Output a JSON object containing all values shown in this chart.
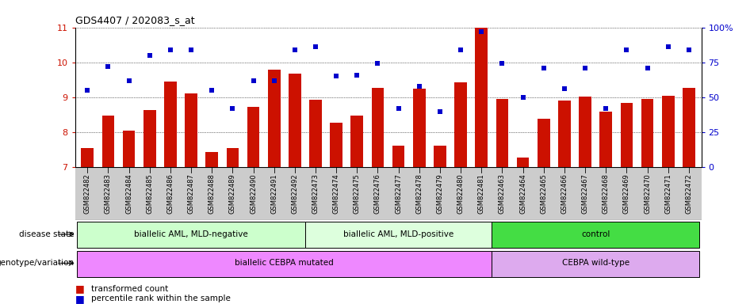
{
  "title": "GDS4407 / 202083_s_at",
  "samples": [
    "GSM822482",
    "GSM822483",
    "GSM822484",
    "GSM822485",
    "GSM822486",
    "GSM822487",
    "GSM822488",
    "GSM822489",
    "GSM822490",
    "GSM822491",
    "GSM822492",
    "GSM822473",
    "GSM822474",
    "GSM822475",
    "GSM822476",
    "GSM822477",
    "GSM822478",
    "GSM822479",
    "GSM822480",
    "GSM822481",
    "GSM822463",
    "GSM822464",
    "GSM822465",
    "GSM822466",
    "GSM822467",
    "GSM822468",
    "GSM822469",
    "GSM822470",
    "GSM822471",
    "GSM822472"
  ],
  "bar_values": [
    7.55,
    8.47,
    8.05,
    8.63,
    9.45,
    9.12,
    7.44,
    7.55,
    8.72,
    9.78,
    9.68,
    8.92,
    8.27,
    8.48,
    9.27,
    7.62,
    9.25,
    7.62,
    9.42,
    11.0,
    8.95,
    7.27,
    8.38,
    8.9,
    9.02,
    8.6,
    8.85,
    8.95,
    9.05,
    9.27
  ],
  "percentile_values_pct": [
    55,
    72,
    62,
    80,
    84,
    84,
    55,
    42,
    62,
    62,
    84,
    86,
    65,
    66,
    74,
    42,
    58,
    40,
    84,
    97,
    74,
    50,
    71,
    56,
    71,
    42,
    84,
    71,
    86,
    84
  ],
  "ylim_left": [
    7,
    11
  ],
  "ylim_right": [
    0,
    100
  ],
  "yticks_left": [
    7,
    8,
    9,
    10,
    11
  ],
  "yticks_right": [
    0,
    25,
    50,
    75,
    100
  ],
  "bar_color": "#cc1100",
  "dot_color": "#0000cc",
  "groups": [
    {
      "label": "biallelic AML, MLD-negative",
      "start": 0,
      "end": 10,
      "color": "#ccffcc"
    },
    {
      "label": "biallelic AML, MLD-positive",
      "start": 11,
      "end": 19,
      "color": "#ddffdd"
    },
    {
      "label": "control",
      "start": 20,
      "end": 29,
      "color": "#44dd44"
    }
  ],
  "genotype_groups": [
    {
      "label": "biallelic CEBPA mutated",
      "start": 0,
      "end": 19,
      "color": "#ee88ff"
    },
    {
      "label": "CEBPA wild-type",
      "start": 20,
      "end": 29,
      "color": "#ddaaee"
    }
  ],
  "disease_state_label": "disease state",
  "genotype_label": "genotype/variation",
  "legend_bar_label": "transformed count",
  "legend_dot_label": "percentile rank within the sample",
  "tick_bg_color": "#cccccc",
  "dot_size": 14
}
